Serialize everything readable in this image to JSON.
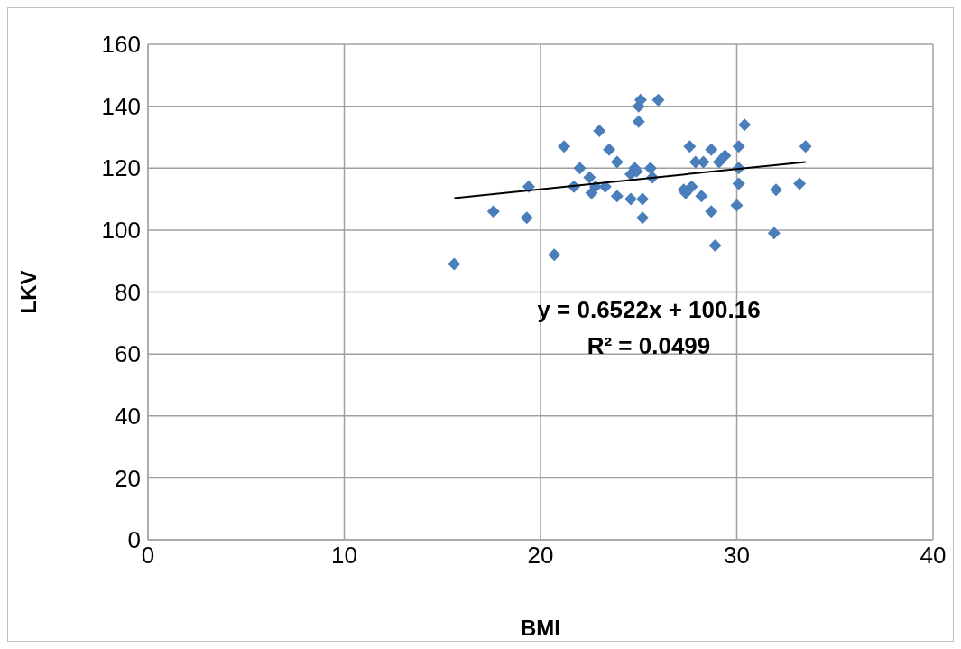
{
  "chart_data": {
    "type": "scatter",
    "xlabel": "BMI",
    "ylabel": "LKV",
    "xlim": [
      0,
      40
    ],
    "xticks": [
      0,
      10,
      20,
      30,
      40
    ],
    "ylim": [
      0,
      160
    ],
    "yticks": [
      0,
      20,
      40,
      60,
      80,
      100,
      120,
      140,
      160
    ],
    "grid": true,
    "marker": "diamond",
    "legend": false,
    "annotations": [
      "y = 0.6522x + 100.16",
      "R² = 0.0499"
    ],
    "series": [
      {
        "color": "#4a7ebb",
        "x": [
          15.6,
          17.6,
          19.3,
          19.4,
          20.7,
          21.2,
          21.7,
          22.0,
          22.5,
          22.6,
          22.8,
          23.0,
          23.3,
          23.5,
          23.9,
          23.9,
          24.6,
          24.6,
          24.8,
          24.9,
          25.0,
          25.0,
          25.1,
          25.2,
          25.2,
          25.6,
          25.7,
          26.0,
          27.6,
          27.3,
          27.4,
          27.7,
          27.9,
          28.3,
          28.2,
          28.7,
          29.4,
          29.1,
          28.7,
          28.9,
          30.1,
          30.1,
          30.1,
          30.0,
          30.4,
          32.0,
          31.9,
          33.2,
          33.5
        ],
        "values": [
          89,
          106,
          104,
          114,
          92,
          127,
          114,
          120,
          117,
          112,
          114,
          132,
          114,
          126,
          122,
          111,
          110,
          118,
          120,
          119,
          135,
          140,
          142,
          110,
          104,
          120,
          117,
          142,
          127,
          113,
          112,
          114,
          122,
          122,
          111,
          126,
          124,
          122,
          106,
          95,
          127,
          120,
          115,
          108,
          134,
          113,
          99,
          115,
          127
        ]
      },
      {
        "type": "line",
        "color": "#000000",
        "marker": "none",
        "x": [
          15.6,
          33.5
        ],
        "values": [
          110.3,
          122.0
        ]
      }
    ]
  }
}
